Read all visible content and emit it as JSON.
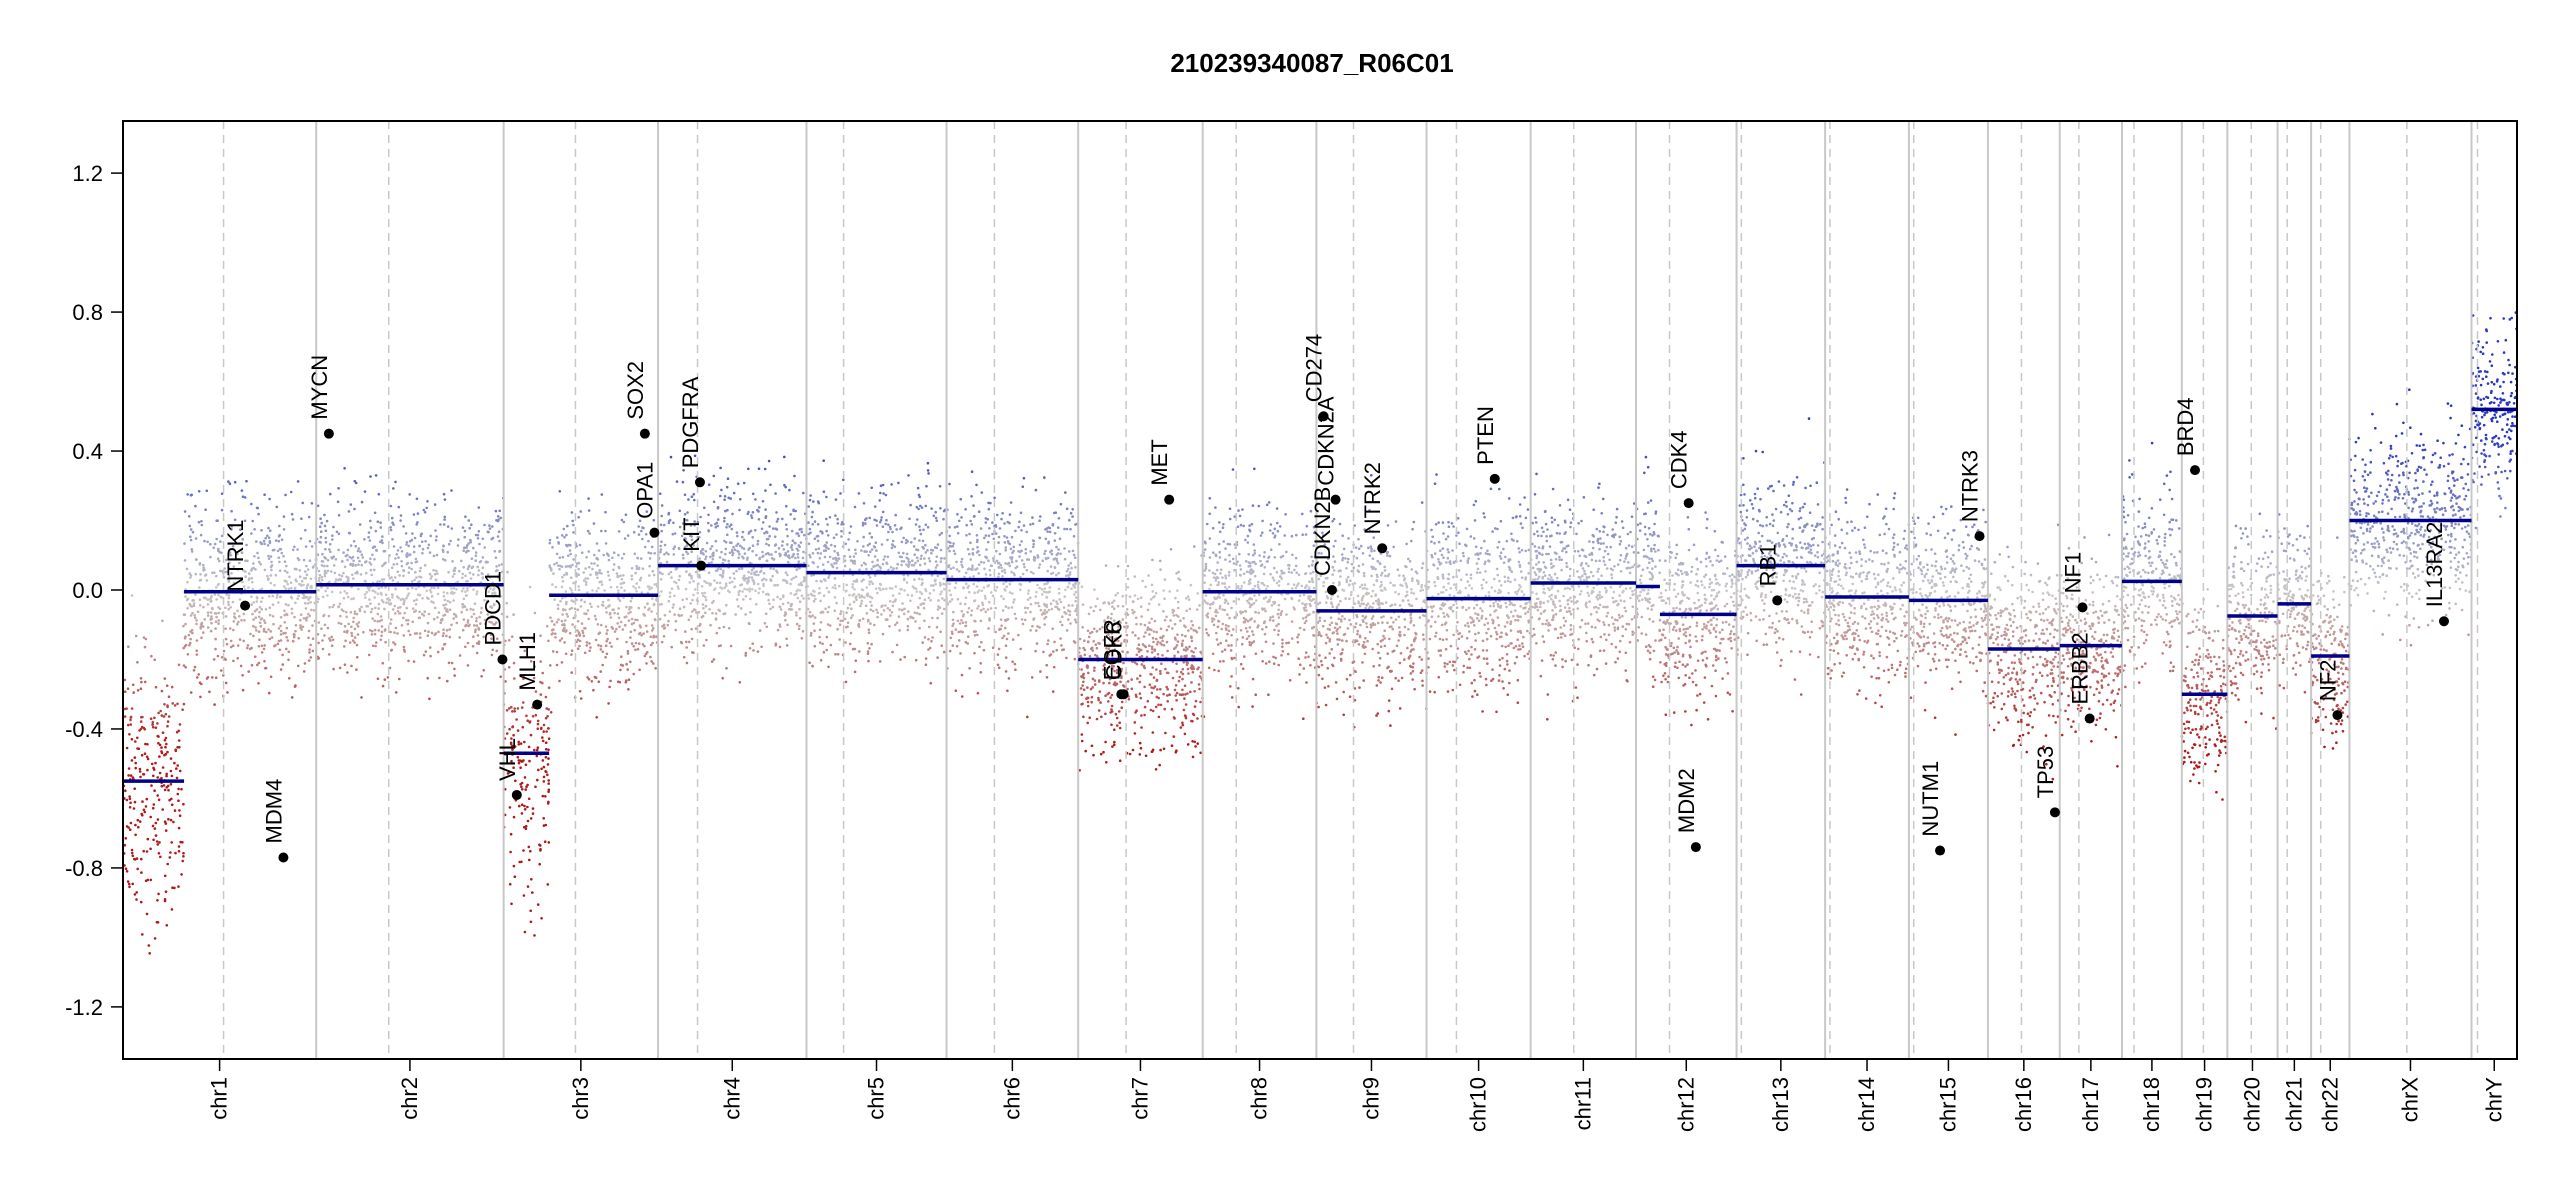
{
  "chart_data": {
    "type": "scatter",
    "title": "210239340087_R06C01",
    "xlabel": "",
    "ylabel": "",
    "ylim": [
      -1.35,
      1.35
    ],
    "xlim": [
      0,
      100
    ],
    "y_ticks": [
      -1.2,
      -0.8,
      -0.4,
      0.0,
      0.4,
      0.8,
      1.2
    ],
    "y_tick_labels": [
      "-1.2",
      "-0.8",
      "-0.4",
      "0.0",
      "0.4",
      "0.8",
      "1.2"
    ],
    "grid": false,
    "colors": {
      "gain": "#1f2fbf",
      "neutral": "#bbbbbb",
      "loss": "#b81e1e",
      "segment": "#00008b",
      "boundary": "#c8c8c8",
      "centromere": "#c8c8c8",
      "gene_point": "#000000"
    },
    "chromosomes": [
      {
        "name": "chr1",
        "start": 0.0,
        "end": 8.07,
        "centromere": 4.2
      },
      {
        "name": "chr2",
        "start": 8.07,
        "end": 15.9,
        "centromere": 11.1
      },
      {
        "name": "chr3",
        "start": 15.9,
        "end": 22.35,
        "centromere": 18.9
      },
      {
        "name": "chr4",
        "start": 22.35,
        "end": 28.55,
        "centromere": 24.0
      },
      {
        "name": "chr5",
        "start": 28.55,
        "end": 34.4,
        "centromere": 30.1
      },
      {
        "name": "chr6",
        "start": 34.4,
        "end": 39.9,
        "centromere": 36.4
      },
      {
        "name": "chr7",
        "start": 39.9,
        "end": 45.1,
        "centromere": 41.9
      },
      {
        "name": "chr8",
        "start": 45.1,
        "end": 49.85,
        "centromere": 46.5
      },
      {
        "name": "chr9",
        "start": 49.85,
        "end": 54.45,
        "centromere": 51.4
      },
      {
        "name": "chr10",
        "start": 54.45,
        "end": 58.8,
        "centromere": 55.7
      },
      {
        "name": "chr11",
        "start": 58.8,
        "end": 63.2,
        "centromere": 60.6
      },
      {
        "name": "chr12",
        "start": 63.2,
        "end": 67.4,
        "centromere": 64.6
      },
      {
        "name": "chr13",
        "start": 67.4,
        "end": 71.1,
        "centromere": 67.6
      },
      {
        "name": "chr14",
        "start": 71.1,
        "end": 74.6,
        "centromere": 71.3
      },
      {
        "name": "chr15",
        "start": 74.6,
        "end": 77.9,
        "centromere": 74.8
      },
      {
        "name": "chr16",
        "start": 77.9,
        "end": 80.9,
        "centromere": 79.3
      },
      {
        "name": "chr17",
        "start": 80.9,
        "end": 83.5,
        "centromere": 81.7
      },
      {
        "name": "chr18",
        "start": 83.5,
        "end": 86.0,
        "centromere": 84.0
      },
      {
        "name": "chr19",
        "start": 86.0,
        "end": 87.9,
        "centromere": 86.9
      },
      {
        "name": "chr20",
        "start": 87.9,
        "end": 90.0,
        "centromere": 88.9
      },
      {
        "name": "chr21",
        "start": 90.0,
        "end": 91.4,
        "centromere": 90.4
      },
      {
        "name": "chr22",
        "start": 91.4,
        "end": 93.0,
        "centromere": 91.8
      },
      {
        "name": "chrX",
        "start": 93.0,
        "end": 98.1,
        "centromere": 95.4
      },
      {
        "name": "chrY",
        "start": 98.1,
        "end": 100.0,
        "centromere": 98.35
      }
    ],
    "segments": [
      {
        "x0": 0.0,
        "x1": 2.55,
        "y": -0.55
      },
      {
        "x0": 2.55,
        "x1": 8.07,
        "y": -0.005
      },
      {
        "x0": 8.07,
        "x1": 15.9,
        "y": 0.015
      },
      {
        "x0": 15.9,
        "x1": 17.8,
        "y": -0.47
      },
      {
        "x0": 17.8,
        "x1": 22.35,
        "y": -0.015
      },
      {
        "x0": 22.35,
        "x1": 28.55,
        "y": 0.07
      },
      {
        "x0": 28.55,
        "x1": 34.4,
        "y": 0.05
      },
      {
        "x0": 34.4,
        "x1": 39.9,
        "y": 0.03
      },
      {
        "x0": 39.9,
        "x1": 45.1,
        "y": -0.2
      },
      {
        "x0": 45.1,
        "x1": 49.85,
        "y": -0.005
      },
      {
        "x0": 49.85,
        "x1": 54.45,
        "y": -0.06
      },
      {
        "x0": 54.45,
        "x1": 58.8,
        "y": -0.025
      },
      {
        "x0": 58.8,
        "x1": 63.2,
        "y": 0.02
      },
      {
        "x0": 63.2,
        "x1": 64.2,
        "y": 0.01
      },
      {
        "x0": 64.2,
        "x1": 67.4,
        "y": -0.07
      },
      {
        "x0": 67.4,
        "x1": 71.1,
        "y": 0.07
      },
      {
        "x0": 71.1,
        "x1": 74.6,
        "y": -0.02
      },
      {
        "x0": 74.6,
        "x1": 77.9,
        "y": -0.03
      },
      {
        "x0": 77.9,
        "x1": 80.9,
        "y": -0.17
      },
      {
        "x0": 80.9,
        "x1": 83.5,
        "y": -0.16
      },
      {
        "x0": 83.5,
        "x1": 86.0,
        "y": 0.025
      },
      {
        "x0": 86.0,
        "x1": 87.9,
        "y": -0.3
      },
      {
        "x0": 87.9,
        "x1": 90.0,
        "y": -0.075
      },
      {
        "x0": 90.0,
        "x1": 91.4,
        "y": -0.04
      },
      {
        "x0": 91.4,
        "x1": 93.0,
        "y": -0.19
      },
      {
        "x0": 93.0,
        "x1": 98.1,
        "y": 0.2
      },
      {
        "x0": 98.1,
        "x1": 100.0,
        "y": 0.52
      }
    ],
    "genes": [
      {
        "name": "NTRK1",
        "x": 5.1,
        "y": -0.045
      },
      {
        "name": "MDM4",
        "x": 6.7,
        "y": -0.77
      },
      {
        "name": "MYCN",
        "x": 8.6,
        "y": 0.45
      },
      {
        "name": "PDCD1",
        "x": 15.85,
        "y": -0.2
      },
      {
        "name": "VHL",
        "x": 16.45,
        "y": -0.59
      },
      {
        "name": "MLH1",
        "x": 17.3,
        "y": -0.33
      },
      {
        "name": "SOX2",
        "x": 21.8,
        "y": 0.45
      },
      {
        "name": "OPA1",
        "x": 22.2,
        "y": 0.165
      },
      {
        "name": "KIT",
        "x": 24.15,
        "y": 0.07
      },
      {
        "name": "PDGFRA",
        "x": 24.1,
        "y": 0.31
      },
      {
        "name": "EGFR",
        "x": 41.7,
        "y": -0.3
      },
      {
        "name": "CDK6",
        "x": 41.8,
        "y": -0.3
      },
      {
        "name": "MET",
        "x": 43.7,
        "y": 0.26
      },
      {
        "name": "CD274",
        "x": 50.15,
        "y": 0.5
      },
      {
        "name": "CDKN2A",
        "x": 50.65,
        "y": 0.26
      },
      {
        "name": "CDKN2B",
        "x": 50.5,
        "y": 0.0
      },
      {
        "name": "NTRK2",
        "x": 52.6,
        "y": 0.12
      },
      {
        "name": "PTEN",
        "x": 57.3,
        "y": 0.32
      },
      {
        "name": "CDK4",
        "x": 65.4,
        "y": 0.25
      },
      {
        "name": "MDM2",
        "x": 65.7,
        "y": -0.74
      },
      {
        "name": "RB1",
        "x": 69.1,
        "y": -0.03
      },
      {
        "name": "NUTM1",
        "x": 75.9,
        "y": -0.75
      },
      {
        "name": "NTRK3",
        "x": 77.55,
        "y": 0.155
      },
      {
        "name": "TP53",
        "x": 80.7,
        "y": -0.64
      },
      {
        "name": "NF1",
        "x": 81.85,
        "y": -0.05
      },
      {
        "name": "ERBB2",
        "x": 82.15,
        "y": -0.37
      },
      {
        "name": "BRD4",
        "x": 86.55,
        "y": 0.345
      },
      {
        "name": "NF2",
        "x": 92.5,
        "y": -0.36
      },
      {
        "name": "IL13RA2",
        "x": 96.95,
        "y": -0.09
      }
    ]
  }
}
